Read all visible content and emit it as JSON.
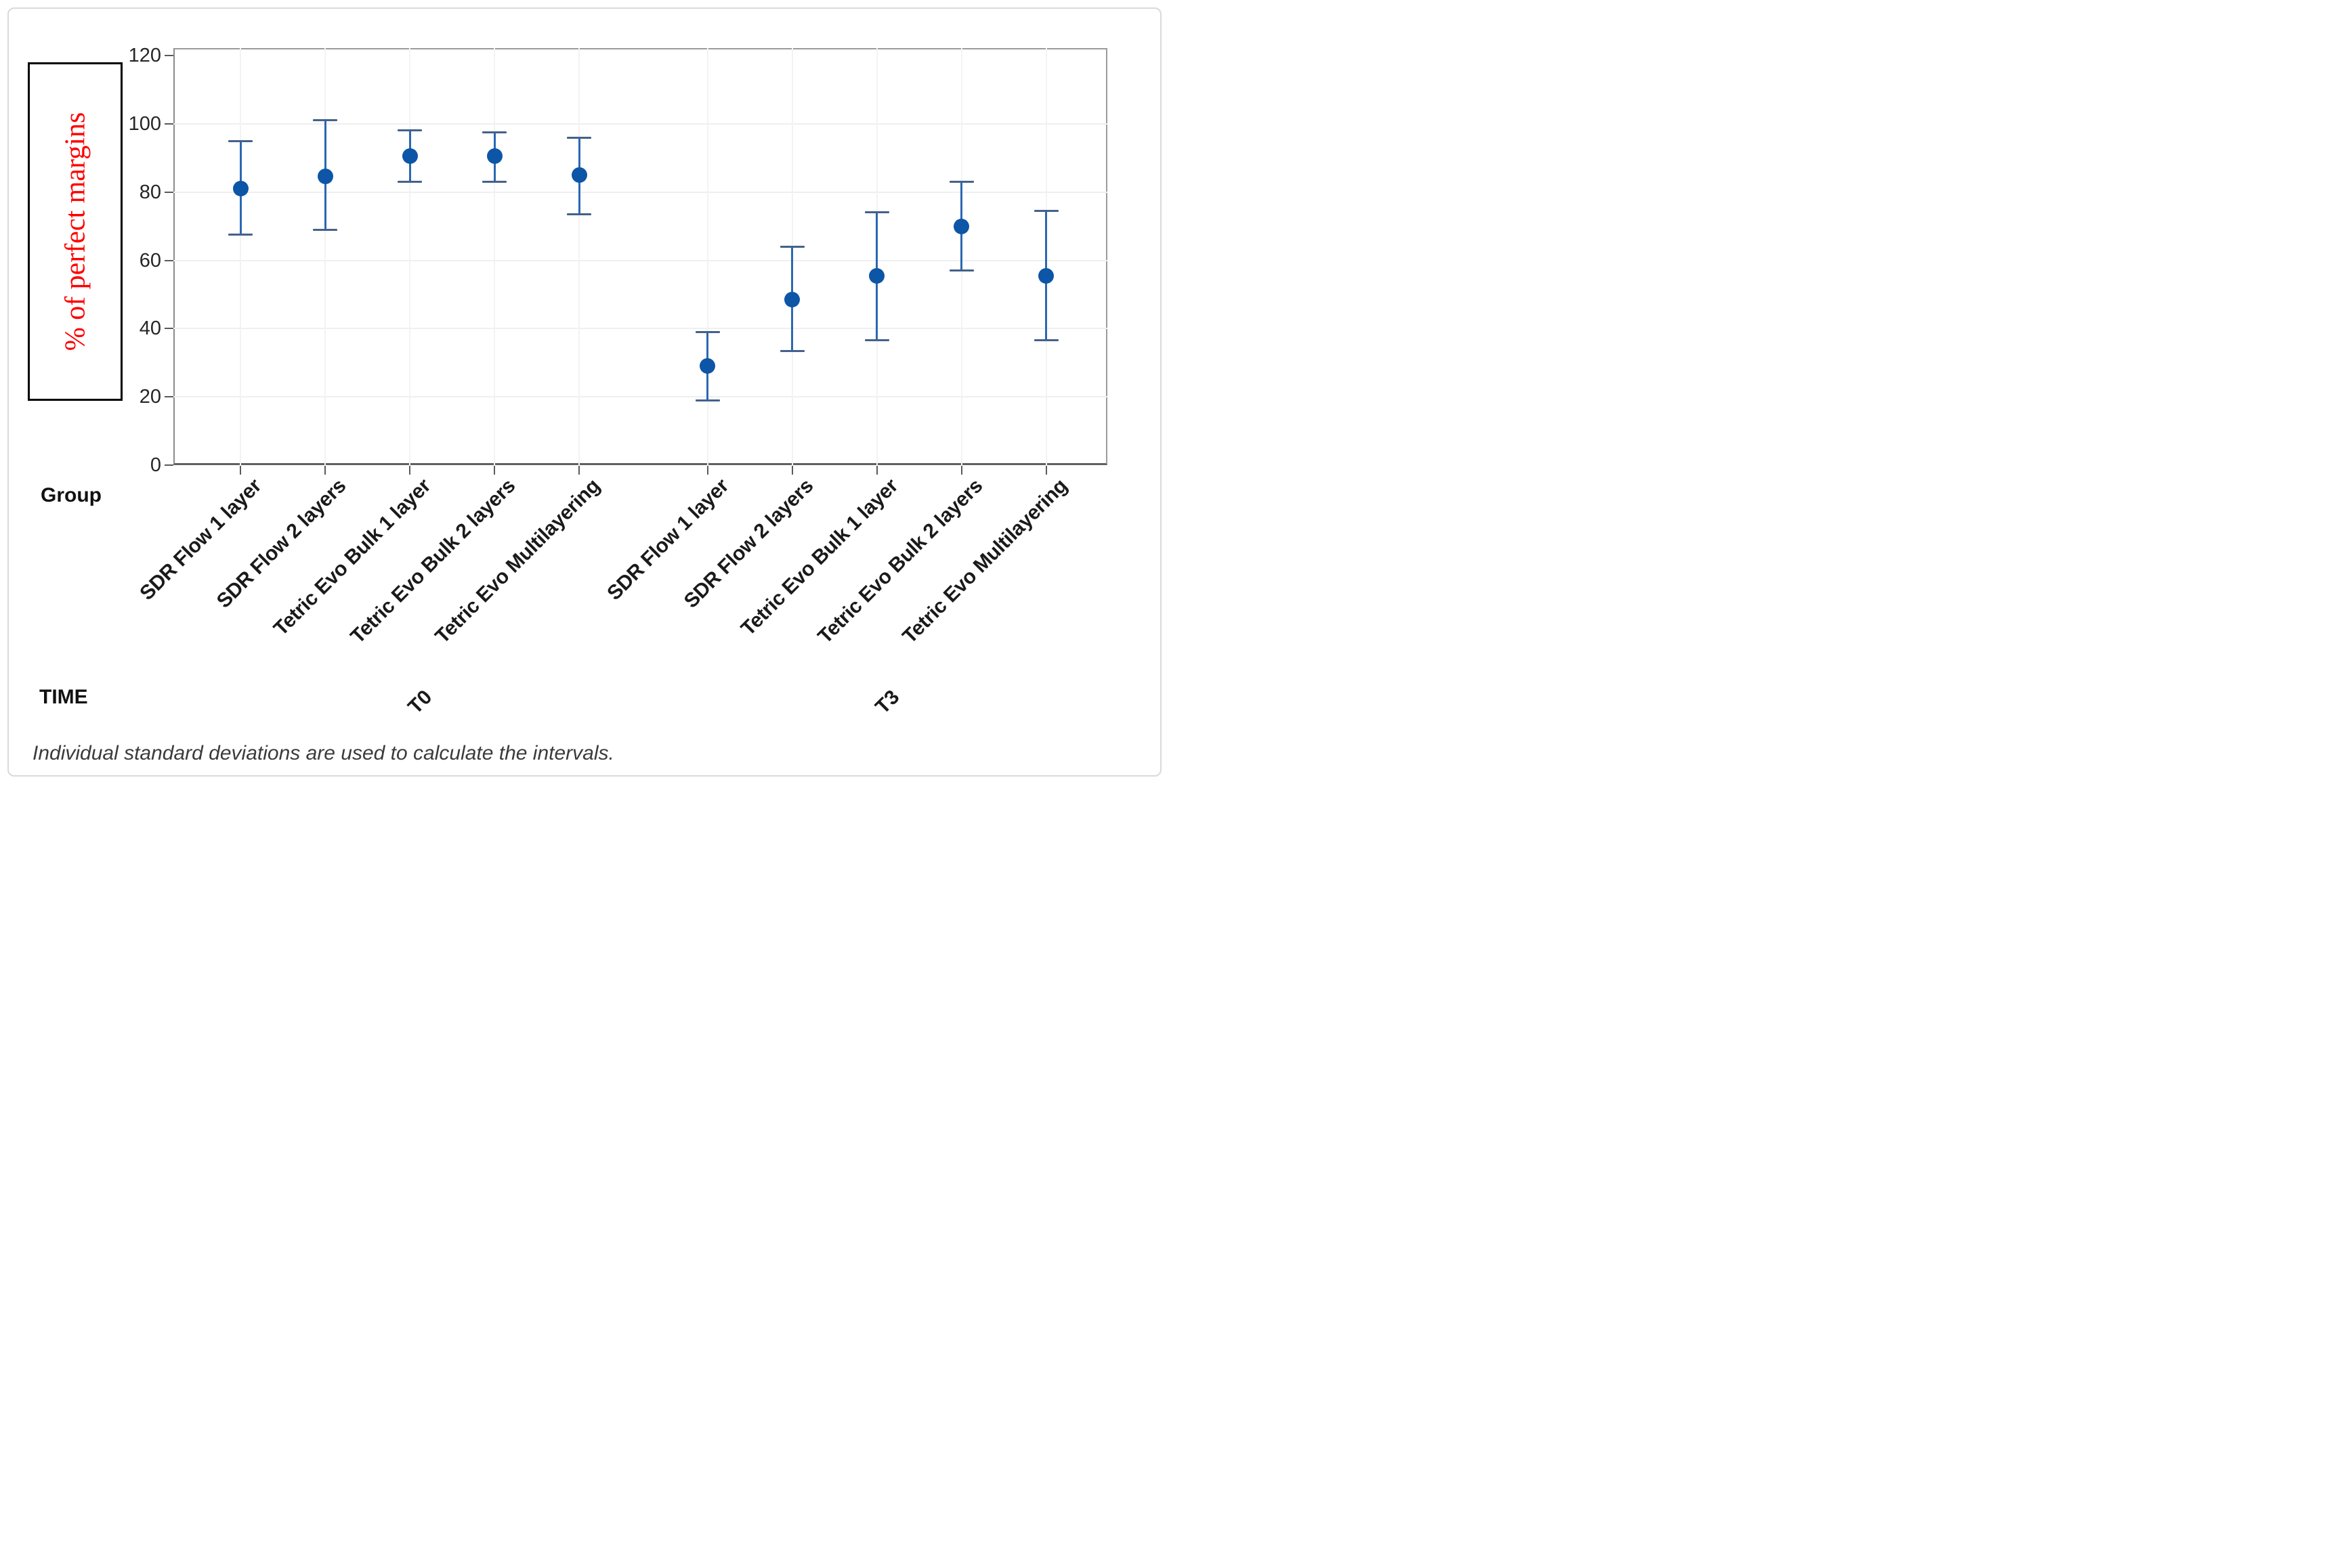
{
  "figure": {
    "y_axis_label": "% of perfect margins",
    "group_axis_label": "Group",
    "time_axis_label": "TIME",
    "footnote": "Individual standard deviations are used to calculate the intervals.",
    "colors": {
      "y_axis_label": "#FF0000",
      "marker": "#0D55A6",
      "interval_line": "#2B68B2",
      "interval_cap": "#44618B",
      "gridline": "#EFEFEF"
    }
  },
  "chart_data": {
    "type": "scatter",
    "subtype": "interval-plot-mean-ci",
    "title": "",
    "ylabel": "% of perfect margins",
    "xlabel": "Group",
    "x_outer_label": "TIME",
    "ylim": [
      0,
      120
    ],
    "yticks": [
      0,
      20,
      40,
      60,
      80,
      100,
      120
    ],
    "grid": true,
    "legend": "none",
    "footnote": "Individual standard deviations are used to calculate the intervals.",
    "categories": [
      "SDR Flow 1 layer",
      "SDR Flow 2 layers",
      "Tetric Evo Bulk 1 layer",
      "Tetric Evo Bulk 2 layers",
      "Tetric Evo Multilayering"
    ],
    "series": [
      {
        "time": "T0",
        "points": [
          {
            "group": "SDR Flow 1 layer",
            "mean": 81,
            "ci_low": 67.5,
            "ci_high": 95
          },
          {
            "group": "SDR Flow 2 layers",
            "mean": 84.5,
            "ci_low": 69,
            "ci_high": 101
          },
          {
            "group": "Tetric Evo Bulk 1 layer",
            "mean": 90.5,
            "ci_low": 83,
            "ci_high": 98
          },
          {
            "group": "Tetric Evo Bulk 2 layers",
            "mean": 90.5,
            "ci_low": 83,
            "ci_high": 97.5
          },
          {
            "group": "Tetric Evo Multilayering",
            "mean": 85,
            "ci_low": 73.5,
            "ci_high": 96
          }
        ]
      },
      {
        "time": "T3",
        "points": [
          {
            "group": "SDR Flow 1 layer",
            "mean": 29,
            "ci_low": 19,
            "ci_high": 39
          },
          {
            "group": "SDR Flow 2 layers",
            "mean": 48.5,
            "ci_low": 33.5,
            "ci_high": 64
          },
          {
            "group": "Tetric Evo Bulk 1 layer",
            "mean": 55.5,
            "ci_low": 36.5,
            "ci_high": 74
          },
          {
            "group": "Tetric Evo Bulk 2 layers",
            "mean": 70,
            "ci_low": 57,
            "ci_high": 83
          },
          {
            "group": "Tetric Evo Multilayering",
            "mean": 55.5,
            "ci_low": 36.5,
            "ci_high": 74.5
          }
        ]
      }
    ]
  }
}
